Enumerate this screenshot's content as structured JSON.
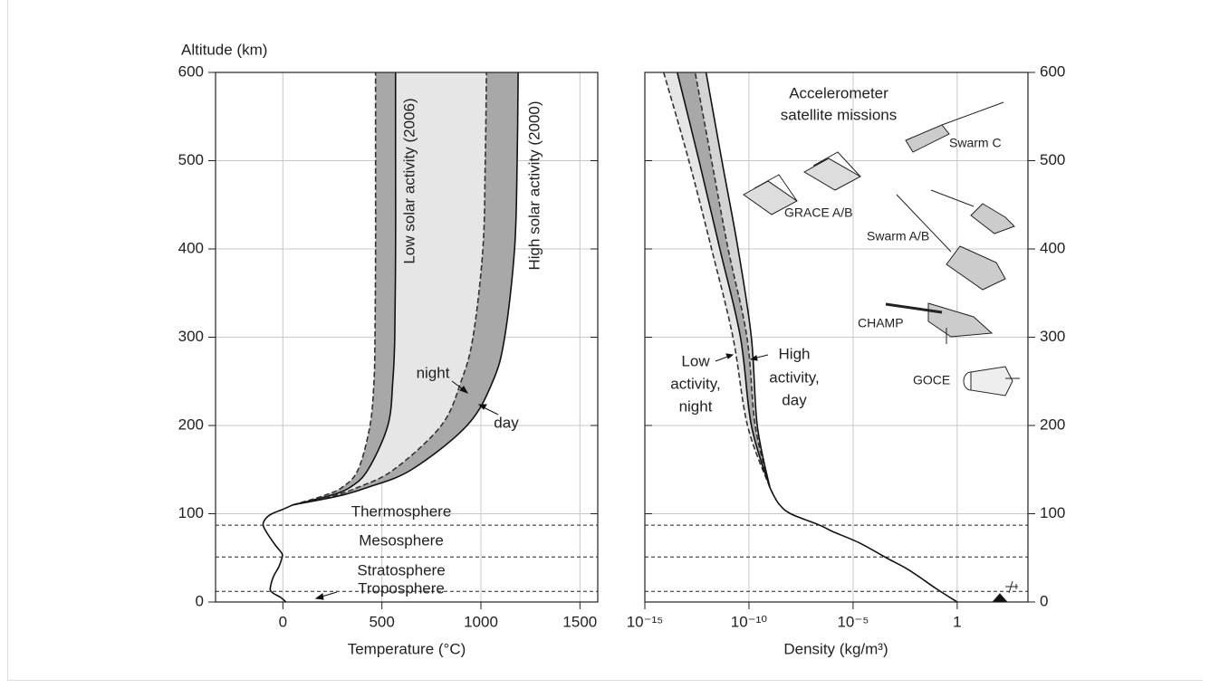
{
  "chart_data": [
    {
      "type": "line",
      "ylabel": "Altitude (km)",
      "xlabel": "Temperature (°C)",
      "xlim": [
        -340,
        1590
      ],
      "xticks": [
        0,
        500,
        1000,
        1500
      ],
      "ylim": [
        0,
        600
      ],
      "yticks": [
        0,
        100,
        200,
        300,
        400,
        500,
        600
      ],
      "yaxis": "left",
      "grid": true,
      "series": [
        {
          "color": "#111111",
          "dash": false,
          "y": [
            0,
            5,
            12,
            20,
            30,
            40,
            50,
            55,
            65,
            80,
            88,
            95,
            100,
            105,
            110
          ],
          "x": [
            15,
            -10,
            -60,
            -60,
            -45,
            -20,
            -5,
            -5,
            -40,
            -85,
            -100,
            -85,
            -55,
            0,
            50
          ]
        },
        {
          "color": "#333333",
          "dash": true,
          "y": [
            110,
            120,
            130,
            150,
            200,
            250,
            300,
            400,
            500,
            600
          ],
          "x": [
            50,
            200,
            300,
            380,
            440,
            460,
            465,
            468,
            468,
            468
          ]
        },
        {
          "color": "#111111",
          "dash": false,
          "y": [
            110,
            120,
            130,
            150,
            200,
            250,
            300,
            400,
            500,
            600
          ],
          "x": [
            50,
            230,
            340,
            430,
            530,
            555,
            565,
            569,
            569,
            569
          ]
        },
        {
          "color": "#333333",
          "dash": true,
          "y": [
            110,
            120,
            130,
            150,
            200,
            250,
            300,
            400,
            500,
            600
          ],
          "x": [
            50,
            250,
            380,
            560,
            800,
            900,
            960,
            1010,
            1022,
            1028
          ]
        },
        {
          "color": "#111111",
          "dash": false,
          "y": [
            110,
            120,
            130,
            150,
            200,
            250,
            300,
            400,
            500,
            600
          ],
          "x": [
            50,
            280,
            430,
            650,
            930,
            1060,
            1120,
            1170,
            1183,
            1188
          ]
        }
      ],
      "bands": [
        {
          "series": [
            2,
            3
          ],
          "color": "#e6e6e6"
        },
        {
          "series": [
            1,
            2
          ],
          "color": "#a8a8a8"
        },
        {
          "series": [
            3,
            4
          ],
          "color": "#a8a8a8"
        }
      ],
      "boundaries": [
        12,
        51,
        87
      ],
      "layers": [
        "Thermosphere",
        "Mesosphere",
        "Stratosphere",
        "Troposphere"
      ],
      "annotations": [
        "Low solar activity (2006)",
        "High solar activity (2000)",
        "night",
        "day"
      ]
    },
    {
      "type": "line",
      "xlabel": "Density (kg/m³)",
      "xscale": "log",
      "xlim": [
        1e-15,
        2500
      ],
      "xticks": [
        {
          "value": 1e-15,
          "label": "10⁻¹⁵"
        },
        {
          "value": 1e-10,
          "label": "10⁻¹⁰"
        },
        {
          "value": 1e-05,
          "label": "10⁻⁵"
        },
        1
      ],
      "ylim": [
        0,
        600
      ],
      "yticks": [
        0,
        100,
        200,
        300,
        400,
        500,
        600
      ],
      "yaxis": "right",
      "grid": true,
      "series": [
        {
          "color": "#111111",
          "dash": false,
          "y": [
            0,
            15,
            36,
            50,
            67,
            80,
            87,
            100,
            110,
            120,
            130
          ],
          "x": [
            1,
            0.1,
            0.005,
            0.0004,
            2e-05,
            1e-06,
            2.5e-07,
            1e-08,
            3e-09,
            1.6e-09,
            1e-09
          ]
        },
        {
          "color": "#333333",
          "dash": true,
          "y": [
            130,
            200,
            300,
            400,
            500,
            600
          ],
          "x": [
            1e-09,
            8.5e-11,
            1.7e-11,
            1.6e-12,
            1.3e-13,
            8e-15
          ]
        },
        {
          "color": "#111111",
          "dash": false,
          "y": [
            130,
            200,
            300,
            400,
            500,
            600
          ],
          "x": [
            1e-09,
            1.3e-10,
            3.9e-11,
            4e-12,
            4e-13,
            3.6e-14
          ]
        },
        {
          "color": "#333333",
          "dash": true,
          "y": [
            130,
            200,
            300,
            400,
            500,
            600
          ],
          "x": [
            1e-09,
            2e-10,
            8e-11,
            1e-11,
            1.6e-12,
            2.6e-13
          ]
        },
        {
          "color": "#111111",
          "dash": false,
          "y": [
            130,
            200,
            300,
            400,
            500,
            600
          ],
          "x": [
            1e-09,
            2.5e-10,
            1.3e-10,
            3e-11,
            5e-12,
            8.7e-13
          ]
        }
      ],
      "bands": [
        {
          "series": [
            1,
            2
          ],
          "color": "#e6e6e6"
        },
        {
          "series": [
            2,
            3
          ],
          "color": "#a8a8a8"
        },
        {
          "series": [
            3,
            4
          ],
          "color": "#d4d4d4"
        }
      ],
      "annotations": [
        "Accelerometer",
        "satellite missions",
        "Swarm C",
        "GRACE A/B",
        "Swarm A/B",
        "CHAMP",
        "GOCE",
        "Low",
        "activity,",
        "night",
        "High",
        "activity,",
        "day"
      ]
    }
  ]
}
